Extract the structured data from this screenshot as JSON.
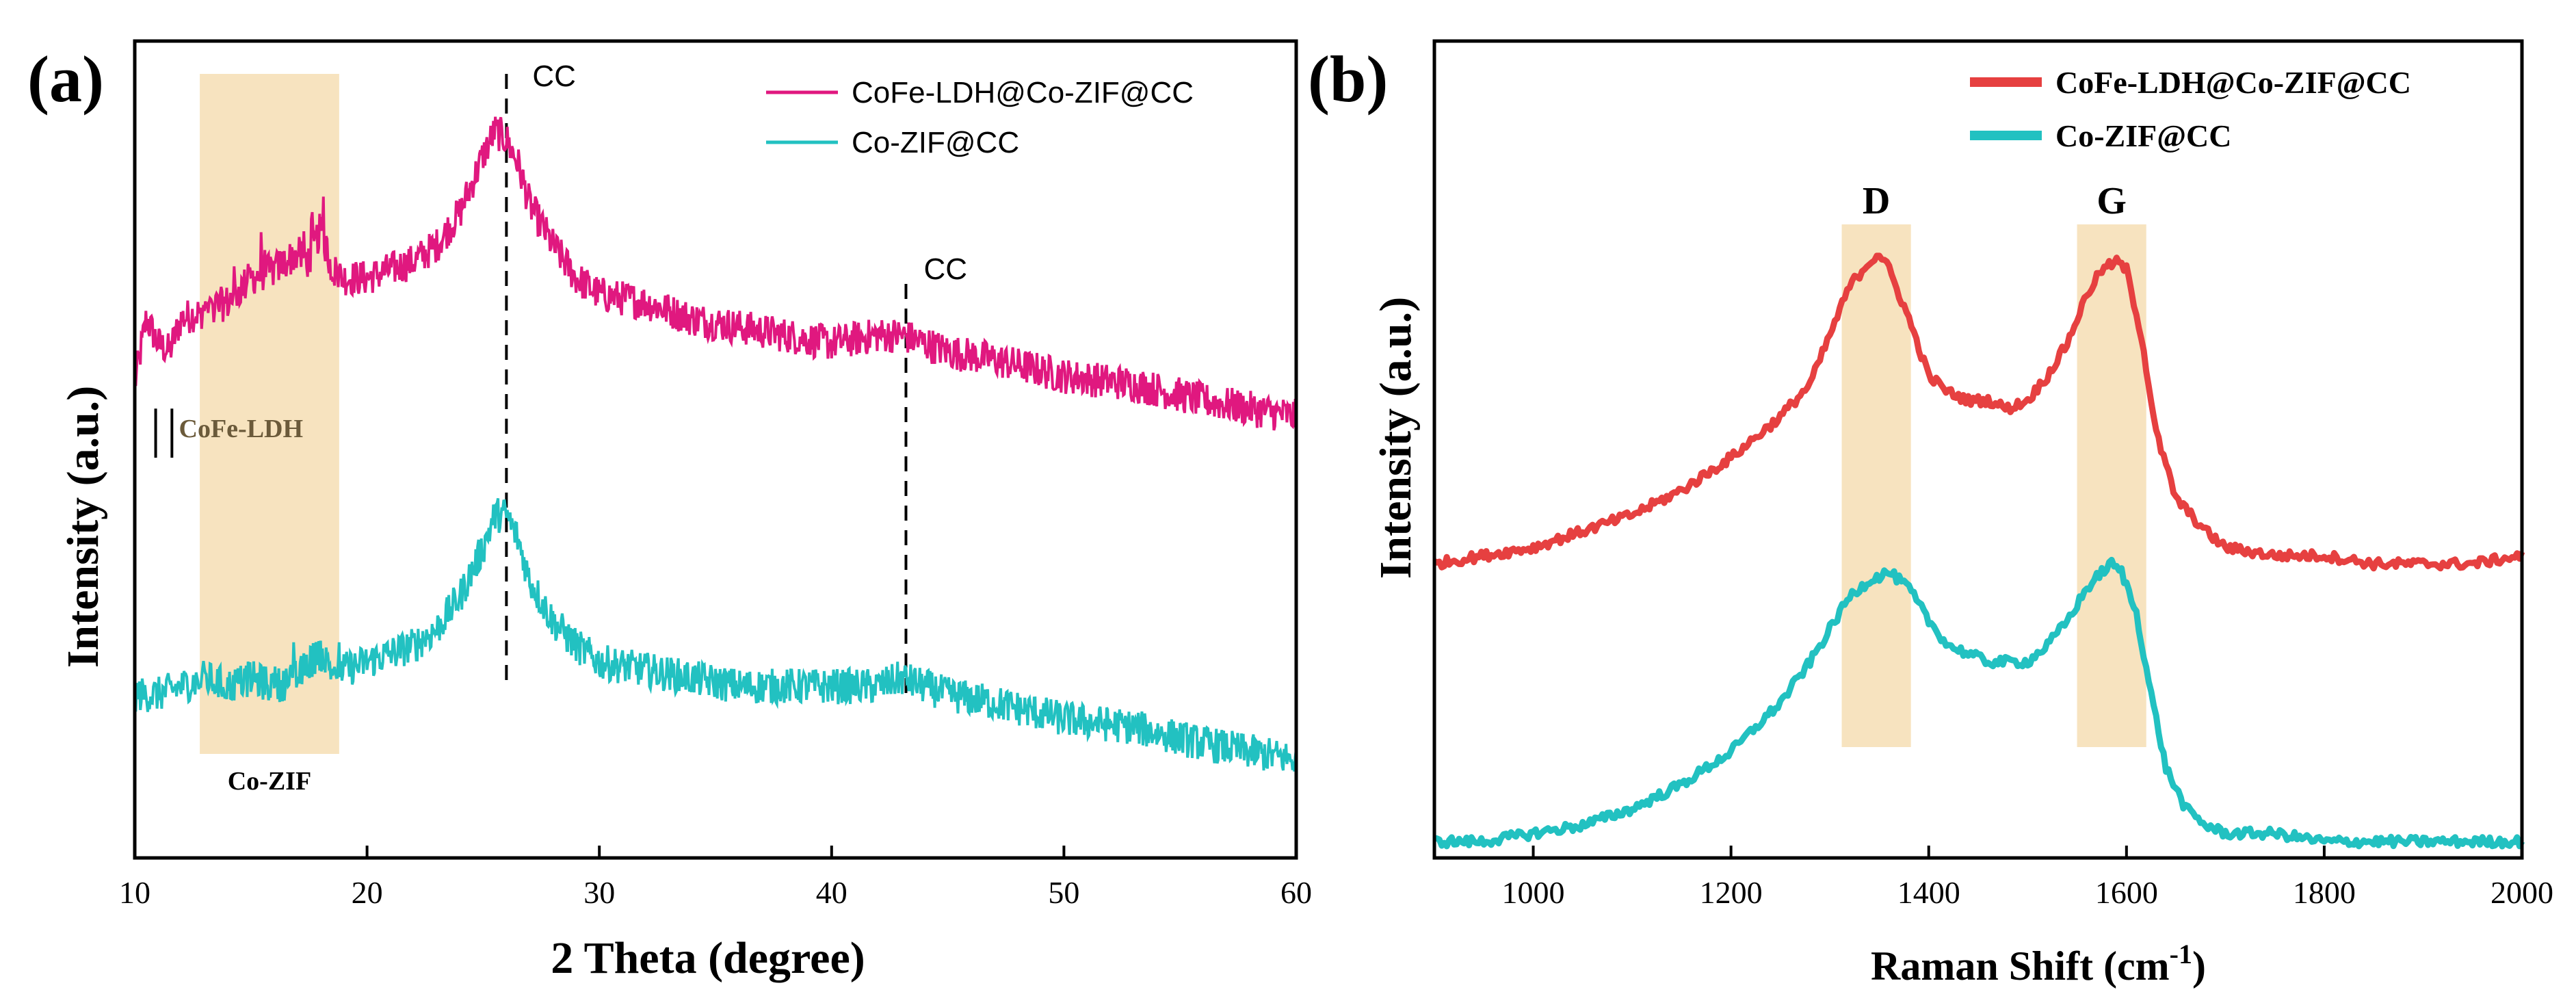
{
  "chart_data": [
    {
      "type": "line",
      "panel_label": "(a)",
      "xlabel": "2 Theta (degree)",
      "ylabel": "Intensity (a.u.)",
      "xlim": [
        10,
        60
      ],
      "ylim": [
        0,
        1
      ],
      "xticks": [
        10,
        20,
        30,
        40,
        50,
        60
      ],
      "xtick_labels": [
        "10",
        "20",
        "30",
        "40",
        "50",
        "60"
      ],
      "legend_position": "top-right",
      "series": [
        {
          "name": "CoFe-LDH@Co-ZIF@CC",
          "color": "#e0187f",
          "x": [
            10,
            10.5,
            11,
            11.5,
            12,
            13,
            14,
            15,
            16,
            17,
            17.5,
            18,
            18.5,
            19,
            20,
            21,
            22,
            23,
            24,
            25,
            25.5,
            26,
            26.5,
            27,
            28,
            29,
            30,
            32,
            34,
            36,
            38,
            40,
            42,
            43,
            44,
            45,
            47,
            50,
            53,
            56,
            58,
            60
          ],
          "y": [
            0.58,
            0.66,
            0.63,
            0.62,
            0.66,
            0.67,
            0.68,
            0.71,
            0.72,
            0.74,
            0.73,
            0.77,
            0.72,
            0.71,
            0.71,
            0.72,
            0.73,
            0.75,
            0.79,
            0.86,
            0.89,
            0.88,
            0.85,
            0.8,
            0.75,
            0.71,
            0.69,
            0.68,
            0.66,
            0.65,
            0.64,
            0.63,
            0.64,
            0.64,
            0.63,
            0.62,
            0.61,
            0.59,
            0.58,
            0.56,
            0.55,
            0.54
          ]
        },
        {
          "name": "Co-ZIF@CC",
          "color": "#22c1c1",
          "x": [
            10,
            11,
            12,
            13,
            14,
            15,
            16,
            17,
            17.5,
            18,
            18.5,
            19,
            20,
            21,
            22,
            23,
            24,
            25,
            25.5,
            26,
            26.5,
            27,
            28,
            29,
            30,
            32,
            34,
            36,
            38,
            40,
            42,
            43,
            44,
            45,
            47,
            50,
            53,
            56,
            58,
            60
          ],
          "y": [
            0.2,
            0.2,
            0.21,
            0.22,
            0.21,
            0.22,
            0.21,
            0.22,
            0.24,
            0.25,
            0.23,
            0.23,
            0.24,
            0.25,
            0.26,
            0.28,
            0.32,
            0.38,
            0.42,
            0.42,
            0.39,
            0.34,
            0.29,
            0.26,
            0.24,
            0.23,
            0.22,
            0.21,
            0.21,
            0.21,
            0.21,
            0.22,
            0.21,
            0.2,
            0.19,
            0.17,
            0.16,
            0.14,
            0.13,
            0.12
          ]
        }
      ],
      "shaded_region": {
        "x0": 12.8,
        "x1": 18.8,
        "label": "Co-ZIF"
      },
      "reference_lines": [
        {
          "x": 26,
          "label": "CC"
        },
        {
          "x": 43.2,
          "label": "CC"
        }
      ],
      "annotations": {
        "ldh_label": "CoFe-LDH",
        "ldh_ticks_x": [
          10.9,
          11.6
        ]
      }
    },
    {
      "type": "line",
      "panel_label": "(b)",
      "xlabel": "Raman Shift (cm",
      "xlabel_superscript": "-1",
      "xlabel_suffix": ")",
      "ylabel": "Intensity (a.u.)",
      "xlim": [
        900,
        2000
      ],
      "ylim": [
        0,
        1
      ],
      "xticks": [
        1000,
        1200,
        1400,
        1600,
        1800,
        2000
      ],
      "xtick_labels": [
        "1000",
        "1200",
        "1400",
        "1600",
        "1800",
        "2000"
      ],
      "legend_position": "top-right",
      "series": [
        {
          "name": "CoFe-LDH@Co-ZIF@CC",
          "color": "#e64040",
          "x": [
            900,
            950,
            1000,
            1050,
            1100,
            1150,
            1200,
            1250,
            1280,
            1300,
            1320,
            1340,
            1350,
            1360,
            1380,
            1400,
            1420,
            1440,
            1460,
            1480,
            1500,
            1520,
            1540,
            1560,
            1575,
            1590,
            1600,
            1615,
            1630,
            1650,
            1680,
            1700,
            1750,
            1800,
            1850,
            1900,
            1950,
            2000
          ],
          "y": [
            0.36,
            0.37,
            0.38,
            0.4,
            0.42,
            0.45,
            0.49,
            0.54,
            0.58,
            0.64,
            0.7,
            0.73,
            0.74,
            0.72,
            0.66,
            0.59,
            0.57,
            0.56,
            0.56,
            0.55,
            0.56,
            0.59,
            0.63,
            0.69,
            0.72,
            0.73,
            0.72,
            0.64,
            0.52,
            0.44,
            0.4,
            0.38,
            0.37,
            0.37,
            0.36,
            0.36,
            0.36,
            0.37
          ]
        },
        {
          "name": "Co-ZIF@CC",
          "color": "#22c1c1",
          "x": [
            900,
            950,
            1000,
            1050,
            1100,
            1150,
            1200,
            1250,
            1280,
            1300,
            1320,
            1340,
            1360,
            1380,
            1400,
            1420,
            1440,
            1460,
            1480,
            1500,
            1520,
            1540,
            1560,
            1575,
            1585,
            1595,
            1610,
            1625,
            1640,
            1660,
            1680,
            1700,
            1750,
            1800,
            1850,
            1900,
            1950,
            2000
          ],
          "y": [
            0.02,
            0.02,
            0.03,
            0.04,
            0.06,
            0.09,
            0.13,
            0.19,
            0.24,
            0.28,
            0.32,
            0.34,
            0.35,
            0.33,
            0.29,
            0.26,
            0.25,
            0.24,
            0.24,
            0.24,
            0.26,
            0.29,
            0.33,
            0.35,
            0.36,
            0.35,
            0.3,
            0.2,
            0.11,
            0.06,
            0.04,
            0.03,
            0.03,
            0.02,
            0.02,
            0.02,
            0.02,
            0.02
          ]
        }
      ],
      "shaded_regions": [
        {
          "x0": 1312,
          "x1": 1382,
          "label": "D"
        },
        {
          "x0": 1550,
          "x1": 1620,
          "label": "G"
        }
      ]
    }
  ]
}
